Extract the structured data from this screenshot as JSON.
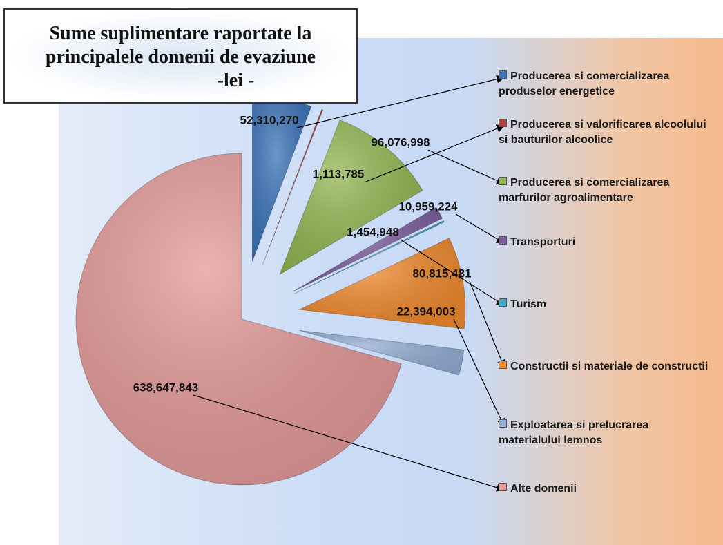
{
  "chart_data": {
    "type": "pie",
    "title": "Sume suplimentare raportate la principalele domenii de evaziune",
    "subtitle": "-lei -",
    "categories": [
      "Producerea si comercializarea produselor energetice",
      "Producerea si valorificarea alcoolului si bauturilor alcoolice",
      "Producerea si comercializarea marfurilor agroalimentare",
      "Transporturi",
      "Turism",
      "Constructii si materiale de constructii",
      "Exploatarea si prelucrarea materialului lemnos",
      "Alte domenii"
    ],
    "values": [
      52310270,
      1113785,
      96076998,
      10959224,
      1454948,
      80815481,
      22394003,
      638647843
    ],
    "value_labels": [
      "52,310,270",
      "1,113,785",
      "96,076,998",
      "10,959,224",
      "1,454,948",
      "80,815,481",
      "22,394,003",
      "638,647,843"
    ],
    "colors": [
      "#3b73b9",
      "#b7403d",
      "#93b753",
      "#7c5ea0",
      "#46a8c4",
      "#f08a2e",
      "#93aed4",
      "#e39a99"
    ],
    "legend": "right"
  }
}
